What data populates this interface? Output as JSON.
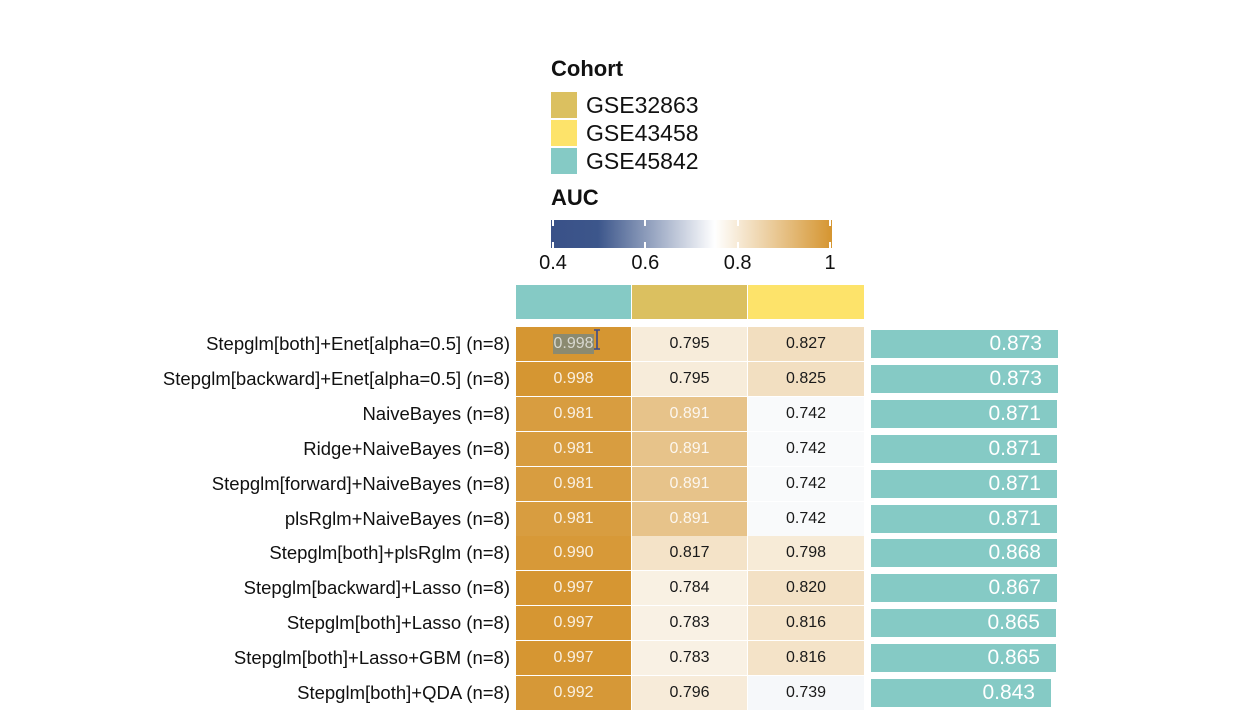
{
  "chart_data": {
    "type": "heatmap",
    "title": "",
    "legend": {
      "cohort": {
        "title": "Cohort",
        "entries": [
          {
            "name": "GSE32863",
            "color": "#DBC060"
          },
          {
            "name": "GSE43458",
            "color": "#FDE36A"
          },
          {
            "name": "GSE45842",
            "color": "#85CAC5"
          }
        ]
      },
      "auc": {
        "title": "AUC",
        "range": [
          0.4,
          1.0
        ],
        "ticks": [
          "0.4",
          "0.6",
          "0.8",
          "1"
        ],
        "tick_values": [
          0.4,
          0.6,
          0.8,
          1.0
        ],
        "gradient": [
          {
            "value": 0.4,
            "color": "#3A5188"
          },
          {
            "value": 0.5,
            "color": "#3C568B"
          },
          {
            "value": 0.75,
            "color": "#FFFFFF"
          },
          {
            "value": 1.0,
            "color": "#D59530"
          }
        ]
      }
    },
    "columns": [
      {
        "cohort": "GSE45842",
        "color": "#85CAC5"
      },
      {
        "cohort": "GSE32863",
        "color": "#DBC060"
      },
      {
        "cohort": "GSE43458",
        "color": "#FDE36A"
      }
    ],
    "rows": [
      {
        "model": "Stepglm[both]+Enet[alpha=0.5] (n=8)",
        "values": [
          "0.998",
          "0.795",
          "0.827"
        ],
        "mean": "0.873"
      },
      {
        "model": "Stepglm[backward]+Enet[alpha=0.5] (n=8)",
        "values": [
          "0.998",
          "0.795",
          "0.825"
        ],
        "mean": "0.873"
      },
      {
        "model": "NaiveBayes (n=8)",
        "values": [
          "0.981",
          "0.891",
          "0.742"
        ],
        "mean": "0.871"
      },
      {
        "model": "Ridge+NaiveBayes (n=8)",
        "values": [
          "0.981",
          "0.891",
          "0.742"
        ],
        "mean": "0.871"
      },
      {
        "model": "Stepglm[forward]+NaiveBayes (n=8)",
        "values": [
          "0.981",
          "0.891",
          "0.742"
        ],
        "mean": "0.871"
      },
      {
        "model": "plsRglm+NaiveBayes (n=8)",
        "values": [
          "0.981",
          "0.891",
          "0.742"
        ],
        "mean": "0.871"
      },
      {
        "model": "Stepglm[both]+plsRglm (n=8)",
        "values": [
          "0.990",
          "0.817",
          "0.798"
        ],
        "mean": "0.868"
      },
      {
        "model": "Stepglm[backward]+Lasso (n=8)",
        "values": [
          "0.997",
          "0.784",
          "0.820"
        ],
        "mean": "0.867"
      },
      {
        "model": "Stepglm[both]+Lasso (n=8)",
        "values": [
          "0.997",
          "0.783",
          "0.816"
        ],
        "mean": "0.865"
      },
      {
        "model": "Stepglm[both]+Lasso+GBM (n=8)",
        "values": [
          "0.997",
          "0.783",
          "0.816"
        ],
        "mean": "0.865"
      },
      {
        "model": "Stepglm[both]+QDA (n=8)",
        "values": [
          "0.992",
          "0.796",
          "0.739"
        ],
        "mean": "0.843"
      }
    ],
    "mean_bar_color": "#85CAC5",
    "selected_text": "0.998"
  }
}
